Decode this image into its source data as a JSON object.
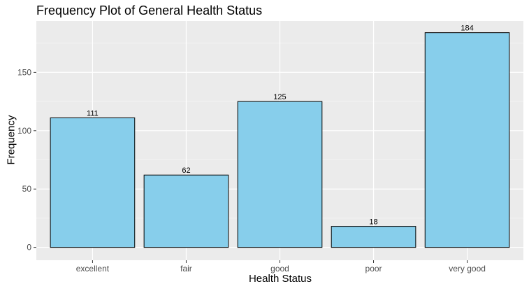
{
  "chart_data": {
    "type": "bar",
    "title": "Frequency Plot of General Health Status",
    "xlabel": "Health Status",
    "ylabel": "Frequency",
    "categories": [
      "excellent",
      "fair",
      "good",
      "poor",
      "very good"
    ],
    "values": [
      111,
      62,
      125,
      18,
      184
    ],
    "ylim": [
      -11,
      194
    ],
    "yticks": [
      0,
      50,
      100,
      150
    ],
    "grid": true,
    "legend": "none",
    "colors": {
      "bar_fill": "#87CEEB",
      "bar_stroke": "#000000",
      "panel_background": "#EBEBEB",
      "grid_major": "#FFFFFF",
      "grid_minor": "#F5F5F5"
    }
  }
}
